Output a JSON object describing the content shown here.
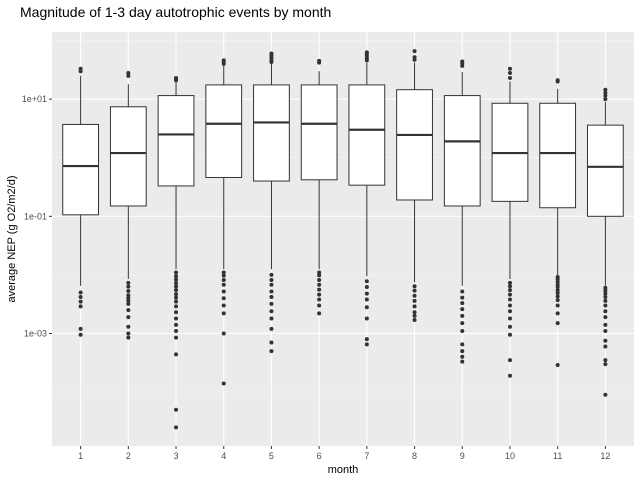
{
  "chart_data": {
    "type": "boxplot",
    "title": "Magnitude of 1-3 day autotrophic events by month",
    "xlabel": "month",
    "ylabel": "average NEP (g O2/m2/d)",
    "y_scale": "log10",
    "ylim": [
      1.2e-05,
      140
    ],
    "y_ticks": [
      0.001,
      0.1,
      10
    ],
    "y_tick_labels": [
      "1e-03",
      "1e-01",
      "1e+01"
    ],
    "categories": [
      "1",
      "2",
      "3",
      "4",
      "5",
      "6",
      "7",
      "8",
      "9",
      "10",
      "11",
      "12"
    ],
    "grid": true,
    "panel_background": "#ebebeb",
    "box_fill": "#ffffff",
    "line_color": "#333333",
    "boxes": [
      {
        "month": "1",
        "whisker_low": 0.0065,
        "q1": 0.106,
        "median": 0.72,
        "q3": 3.7,
        "whisker_high": 25,
        "outliers": [
          0.00095,
          0.0012,
          0.0029,
          0.0035,
          0.0042,
          0.005,
          30,
          33
        ]
      },
      {
        "month": "2",
        "whisker_low": 0.0085,
        "q1": 0.15,
        "median": 1.2,
        "q3": 7.4,
        "whisker_high": 18,
        "outliers": [
          0.00085,
          0.001,
          0.0013,
          0.0019,
          0.0025,
          0.0032,
          0.0036,
          0.004,
          0.0045,
          0.0053,
          0.0063,
          0.0073,
          25,
          28
        ]
      },
      {
        "month": "3",
        "whisker_low": 0.0125,
        "q1": 0.33,
        "median": 2.5,
        "q3": 11.5,
        "whisker_high": 20,
        "outliers": [
          2.5e-05,
          5e-05,
          0.00044,
          0.00085,
          0.0011,
          0.0014,
          0.0018,
          0.0023,
          0.0029,
          0.0035,
          0.0041,
          0.0047,
          0.0055,
          0.0063,
          0.0072,
          0.0083,
          0.0095,
          0.011,
          21,
          22,
          23
        ]
      },
      {
        "month": "4",
        "whisker_low": 0.0125,
        "q1": 0.46,
        "median": 3.8,
        "q3": 17.5,
        "whisker_high": 37,
        "outliers": [
          0.00014,
          0.001,
          0.0022,
          0.003,
          0.004,
          0.0052,
          0.0068,
          0.0082,
          0.0097,
          0.011,
          40,
          43,
          46
        ]
      },
      {
        "month": "5",
        "whisker_low": 0.0125,
        "q1": 0.4,
        "median": 4.0,
        "q3": 17.5,
        "whisker_high": 40,
        "outliers": [
          0.0005,
          0.0007,
          0.0012,
          0.0018,
          0.0024,
          0.0032,
          0.0042,
          0.0052,
          0.0068,
          0.0082,
          0.01,
          43,
          47,
          52,
          57,
          60
        ]
      },
      {
        "month": "6",
        "whisker_low": 0.0125,
        "q1": 0.42,
        "median": 3.8,
        "q3": 17.5,
        "whisker_high": 30,
        "outliers": [
          0.0022,
          0.003,
          0.0038,
          0.0046,
          0.0056,
          0.0068,
          0.0082,
          0.0098,
          0.011,
          42,
          45
        ]
      },
      {
        "month": "7",
        "whisker_low": 0.0095,
        "q1": 0.34,
        "median": 3.0,
        "q3": 17.5,
        "whisker_high": 42,
        "outliers": [
          0.00065,
          0.0008,
          0.0018,
          0.0028,
          0.0038,
          0.0048,
          0.0062,
          0.0078,
          46,
          50,
          55,
          60,
          63
        ]
      },
      {
        "month": "8",
        "whisker_low": 0.0075,
        "q1": 0.19,
        "median": 2.45,
        "q3": 14.5,
        "whisker_high": 42,
        "outliers": [
          0.0017,
          0.002,
          0.0023,
          0.0029,
          0.0036,
          0.0044,
          0.0054,
          0.0064,
          47,
          52,
          66
        ]
      },
      {
        "month": "9",
        "whisker_low": 0.0065,
        "q1": 0.15,
        "median": 1.9,
        "q3": 11.5,
        "whisker_high": 29,
        "outliers": [
          0.00033,
          0.0004,
          0.0005,
          0.00065,
          0.0011,
          0.0015,
          0.002,
          0.0026,
          0.0033,
          0.0041,
          0.0052,
          37,
          41,
          44
        ]
      },
      {
        "month": "10",
        "whisker_low": 0.0085,
        "q1": 0.18,
        "median": 1.2,
        "q3": 8.5,
        "whisker_high": 20,
        "outliers": [
          0.00019,
          0.00035,
          0.00095,
          0.0013,
          0.0018,
          0.0024,
          0.003,
          0.0038,
          0.0046,
          0.0055,
          0.0064,
          0.0073,
          23,
          28,
          33
        ]
      },
      {
        "month": "11",
        "whisker_low": 0.0095,
        "q1": 0.14,
        "median": 1.2,
        "q3": 8.5,
        "whisker_high": 15,
        "outliers": [
          0.00029,
          0.0015,
          0.0022,
          0.003,
          0.0037,
          0.0043,
          0.0049,
          0.0055,
          0.0062,
          0.0068,
          0.0076,
          0.0084,
          0.0092,
          20,
          21
        ]
      },
      {
        "month": "12",
        "whisker_low": 0.0065,
        "q1": 0.1,
        "median": 0.7,
        "q3": 3.6,
        "whisker_high": 9,
        "outliers": [
          9e-05,
          0.0003,
          0.00035,
          0.0006,
          0.00075,
          0.0011,
          0.0014,
          0.0019,
          0.0024,
          0.003,
          0.0036,
          0.0042,
          0.0048,
          0.0054,
          0.006,
          10,
          11.5,
          12.8,
          14.5
        ]
      }
    ]
  }
}
